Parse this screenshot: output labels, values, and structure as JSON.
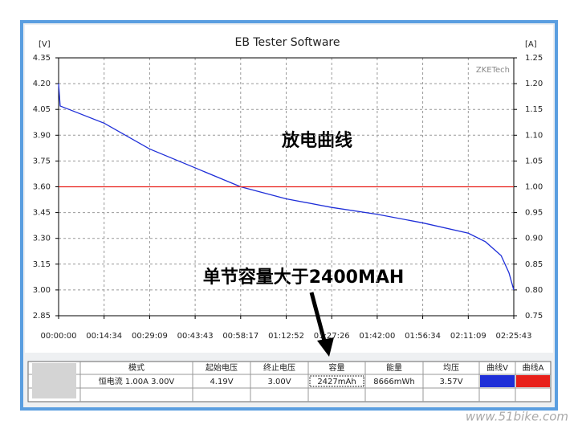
{
  "chart_data": {
    "type": "line",
    "title": "EB Tester Software",
    "y_label": "[V]",
    "y2_label": "[A]",
    "watermark": "ZKETech",
    "annotations": [
      "放电曲线",
      "单节容量大于2400MAH"
    ],
    "x": [
      0,
      30,
      200,
      874,
      1749,
      2623,
      3497,
      4372,
      5246,
      6120,
      6994,
      7869,
      8200,
      8500,
      8650,
      8743
    ],
    "series": [
      {
        "name": "曲线V",
        "color": "#1f2fd8",
        "values": [
          4.2,
          4.07,
          4.05,
          3.97,
          3.82,
          3.71,
          3.6,
          3.53,
          3.48,
          3.44,
          3.39,
          3.33,
          3.28,
          3.2,
          3.1,
          3.0
        ]
      },
      {
        "name": "曲线A",
        "color": "#e8201a",
        "axis": "y2",
        "x": [
          0,
          8743
        ],
        "values": [
          1.0,
          1.0
        ]
      }
    ],
    "xlim": [
      0,
      8743
    ],
    "xticks": [
      {
        "value": 0,
        "label": "00:00:00"
      },
      {
        "value": 874,
        "label": "00:14:34"
      },
      {
        "value": 1749,
        "label": "00:29:09"
      },
      {
        "value": 2623,
        "label": "00:43:43"
      },
      {
        "value": 3497,
        "label": "00:58:17"
      },
      {
        "value": 4372,
        "label": "01:12:52"
      },
      {
        "value": 5246,
        "label": "01:27:26"
      },
      {
        "value": 6120,
        "label": "01:42:00"
      },
      {
        "value": 6994,
        "label": "01:56:34"
      },
      {
        "value": 7869,
        "label": "02:11:09"
      },
      {
        "value": 8743,
        "label": "02:25:43"
      }
    ],
    "ylim": [
      2.85,
      4.35
    ],
    "yticks": [
      {
        "value": 2.85,
        "label": "2.85"
      },
      {
        "value": 3.0,
        "label": "3.00"
      },
      {
        "value": 3.15,
        "label": "3.15"
      },
      {
        "value": 3.3,
        "label": "3.30"
      },
      {
        "value": 3.45,
        "label": "3.45"
      },
      {
        "value": 3.6,
        "label": "3.60"
      },
      {
        "value": 3.75,
        "label": "3.75"
      },
      {
        "value": 3.9,
        "label": "3.90"
      },
      {
        "value": 4.05,
        "label": "4.05"
      },
      {
        "value": 4.2,
        "label": "4.20"
      },
      {
        "value": 4.35,
        "label": "4.35"
      }
    ],
    "y2lim": [
      0.75,
      1.25
    ],
    "y2ticks": [
      {
        "value": 0.75,
        "label": "0.75"
      },
      {
        "value": 0.8,
        "label": "0.80"
      },
      {
        "value": 0.85,
        "label": "0.85"
      },
      {
        "value": 0.9,
        "label": "0.90"
      },
      {
        "value": 0.95,
        "label": "0.95"
      },
      {
        "value": 1.0,
        "label": "1.00"
      },
      {
        "value": 1.05,
        "label": "1.05"
      },
      {
        "value": 1.1,
        "label": "1.10"
      },
      {
        "value": 1.15,
        "label": "1.15"
      },
      {
        "value": 1.2,
        "label": "1.20"
      },
      {
        "value": 1.25,
        "label": "1.25"
      }
    ],
    "grid": true
  },
  "table": {
    "header": [
      "模式",
      "起始电压",
      "终止电压",
      "容量",
      "能量",
      "均压",
      "曲线V",
      "曲线A"
    ],
    "rows": [
      [
        "恒电流 1.00A 3.00V",
        "4.19V",
        "3.00V",
        "2427mAh",
        "8666mWh",
        "3.57V"
      ]
    ]
  },
  "footer": {
    "watermark": "www.51bike.com"
  }
}
